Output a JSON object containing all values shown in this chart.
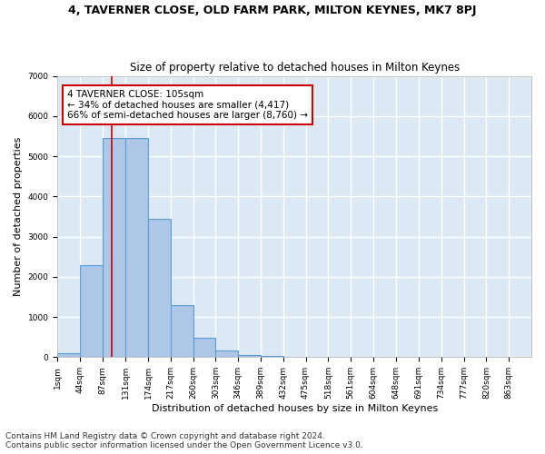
{
  "title_line1": "4, TAVERNER CLOSE, OLD FARM PARK, MILTON KEYNES, MK7 8PJ",
  "title_line2": "Size of property relative to detached houses in Milton Keynes",
  "xlabel": "Distribution of detached houses by size in Milton Keynes",
  "ylabel": "Number of detached properties",
  "bar_left_edges": [
    1,
    44,
    87,
    131,
    174,
    217,
    260,
    303,
    346,
    389,
    432,
    475,
    518,
    561,
    604,
    648,
    691,
    734,
    777,
    820
  ],
  "bar_heights": [
    100,
    2300,
    5450,
    5450,
    3450,
    1300,
    480,
    160,
    50,
    20,
    5,
    5,
    5,
    5,
    5,
    5,
    5,
    5,
    5,
    5
  ],
  "bin_width": 43,
  "bar_color": "#aec6e8",
  "bar_edge_color": "#5a9fd4",
  "property_size": 105,
  "red_line_color": "#cc0000",
  "annotation_text": "4 TAVERNER CLOSE: 105sqm\n← 34% of detached houses are smaller (4,417)\n66% of semi-detached houses are larger (8,760) →",
  "annotation_box_color": "#cc0000",
  "annotation_text_color": "black",
  "ylim": [
    0,
    7000
  ],
  "yticks": [
    0,
    1000,
    2000,
    3000,
    4000,
    5000,
    6000,
    7000
  ],
  "xtick_labels": [
    "1sqm",
    "44sqm",
    "87sqm",
    "131sqm",
    "174sqm",
    "217sqm",
    "260sqm",
    "303sqm",
    "346sqm",
    "389sqm",
    "432sqm",
    "475sqm",
    "518sqm",
    "561sqm",
    "604sqm",
    "648sqm",
    "691sqm",
    "734sqm",
    "777sqm",
    "820sqm",
    "863sqm"
  ],
  "background_color": "#dce9f5",
  "grid_color": "white",
  "footer_line1": "Contains HM Land Registry data © Crown copyright and database right 2024.",
  "footer_line2": "Contains public sector information licensed under the Open Government Licence v3.0.",
  "title_fontsize": 9,
  "subtitle_fontsize": 8.5,
  "axis_label_fontsize": 8,
  "tick_fontsize": 6.5,
  "annotation_fontsize": 7.5,
  "footer_fontsize": 6.5
}
